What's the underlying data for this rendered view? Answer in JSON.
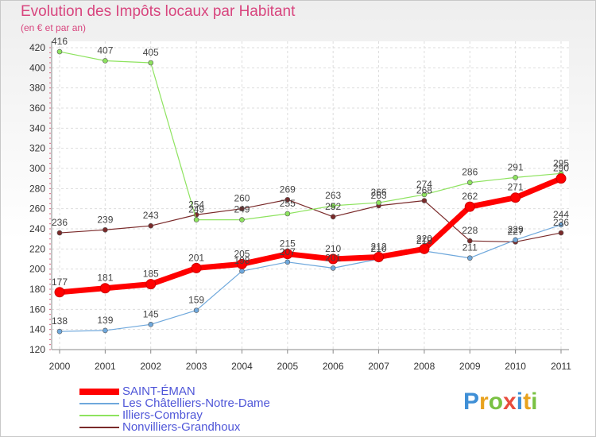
{
  "header": {
    "title": "Evolution des Impôts locaux par Habitant",
    "subtitle": "(en € et par an)"
  },
  "chart_data": {
    "type": "line",
    "title": "Evolution des Impôts locaux par Habitant",
    "subtitle": "(en € et par an)",
    "xlabel": "",
    "ylabel": "",
    "ylim": [
      120,
      420
    ],
    "yticks": [
      120,
      140,
      160,
      180,
      200,
      220,
      240,
      260,
      280,
      300,
      320,
      340,
      360,
      380,
      400,
      420
    ],
    "x": [
      2000,
      2001,
      2002,
      2003,
      2004,
      2005,
      2006,
      2007,
      2008,
      2009,
      2010,
      2011
    ],
    "grid": true,
    "legend_position": "bottom-left",
    "series": [
      {
        "name": "SAINT-ÉMAN",
        "color": "#ff0000",
        "values": [
          177,
          181,
          185,
          201,
          205,
          215,
          210,
          212,
          220,
          262,
          271,
          290
        ]
      },
      {
        "name": "Les Châtelliers-Notre-Dame",
        "color": "#6fa8dc",
        "values": [
          138,
          139,
          145,
          159,
          198,
          207,
          201,
          210,
          218,
          211,
          229,
          244
        ]
      },
      {
        "name": "Illiers-Combray",
        "color": "#8ee35f",
        "values": [
          416,
          407,
          405,
          249,
          249,
          255,
          263,
          266,
          274,
          286,
          291,
          295
        ]
      },
      {
        "name": "Nonvilliers-Grandhoux",
        "color": "#7a2a2a",
        "values": [
          236,
          239,
          243,
          254,
          260,
          269,
          252,
          263,
          268,
          228,
          227,
          236
        ]
      }
    ]
  },
  "branding": {
    "logo_letters": [
      "P",
      "r",
      "o",
      "x",
      "i",
      "t",
      "i"
    ],
    "logo_colors": [
      "#3f8fd6",
      "#e8a21e",
      "#7ac143",
      "#e84c3d",
      "#3f8fd6",
      "#e8a21e",
      "#7ac143"
    ]
  }
}
